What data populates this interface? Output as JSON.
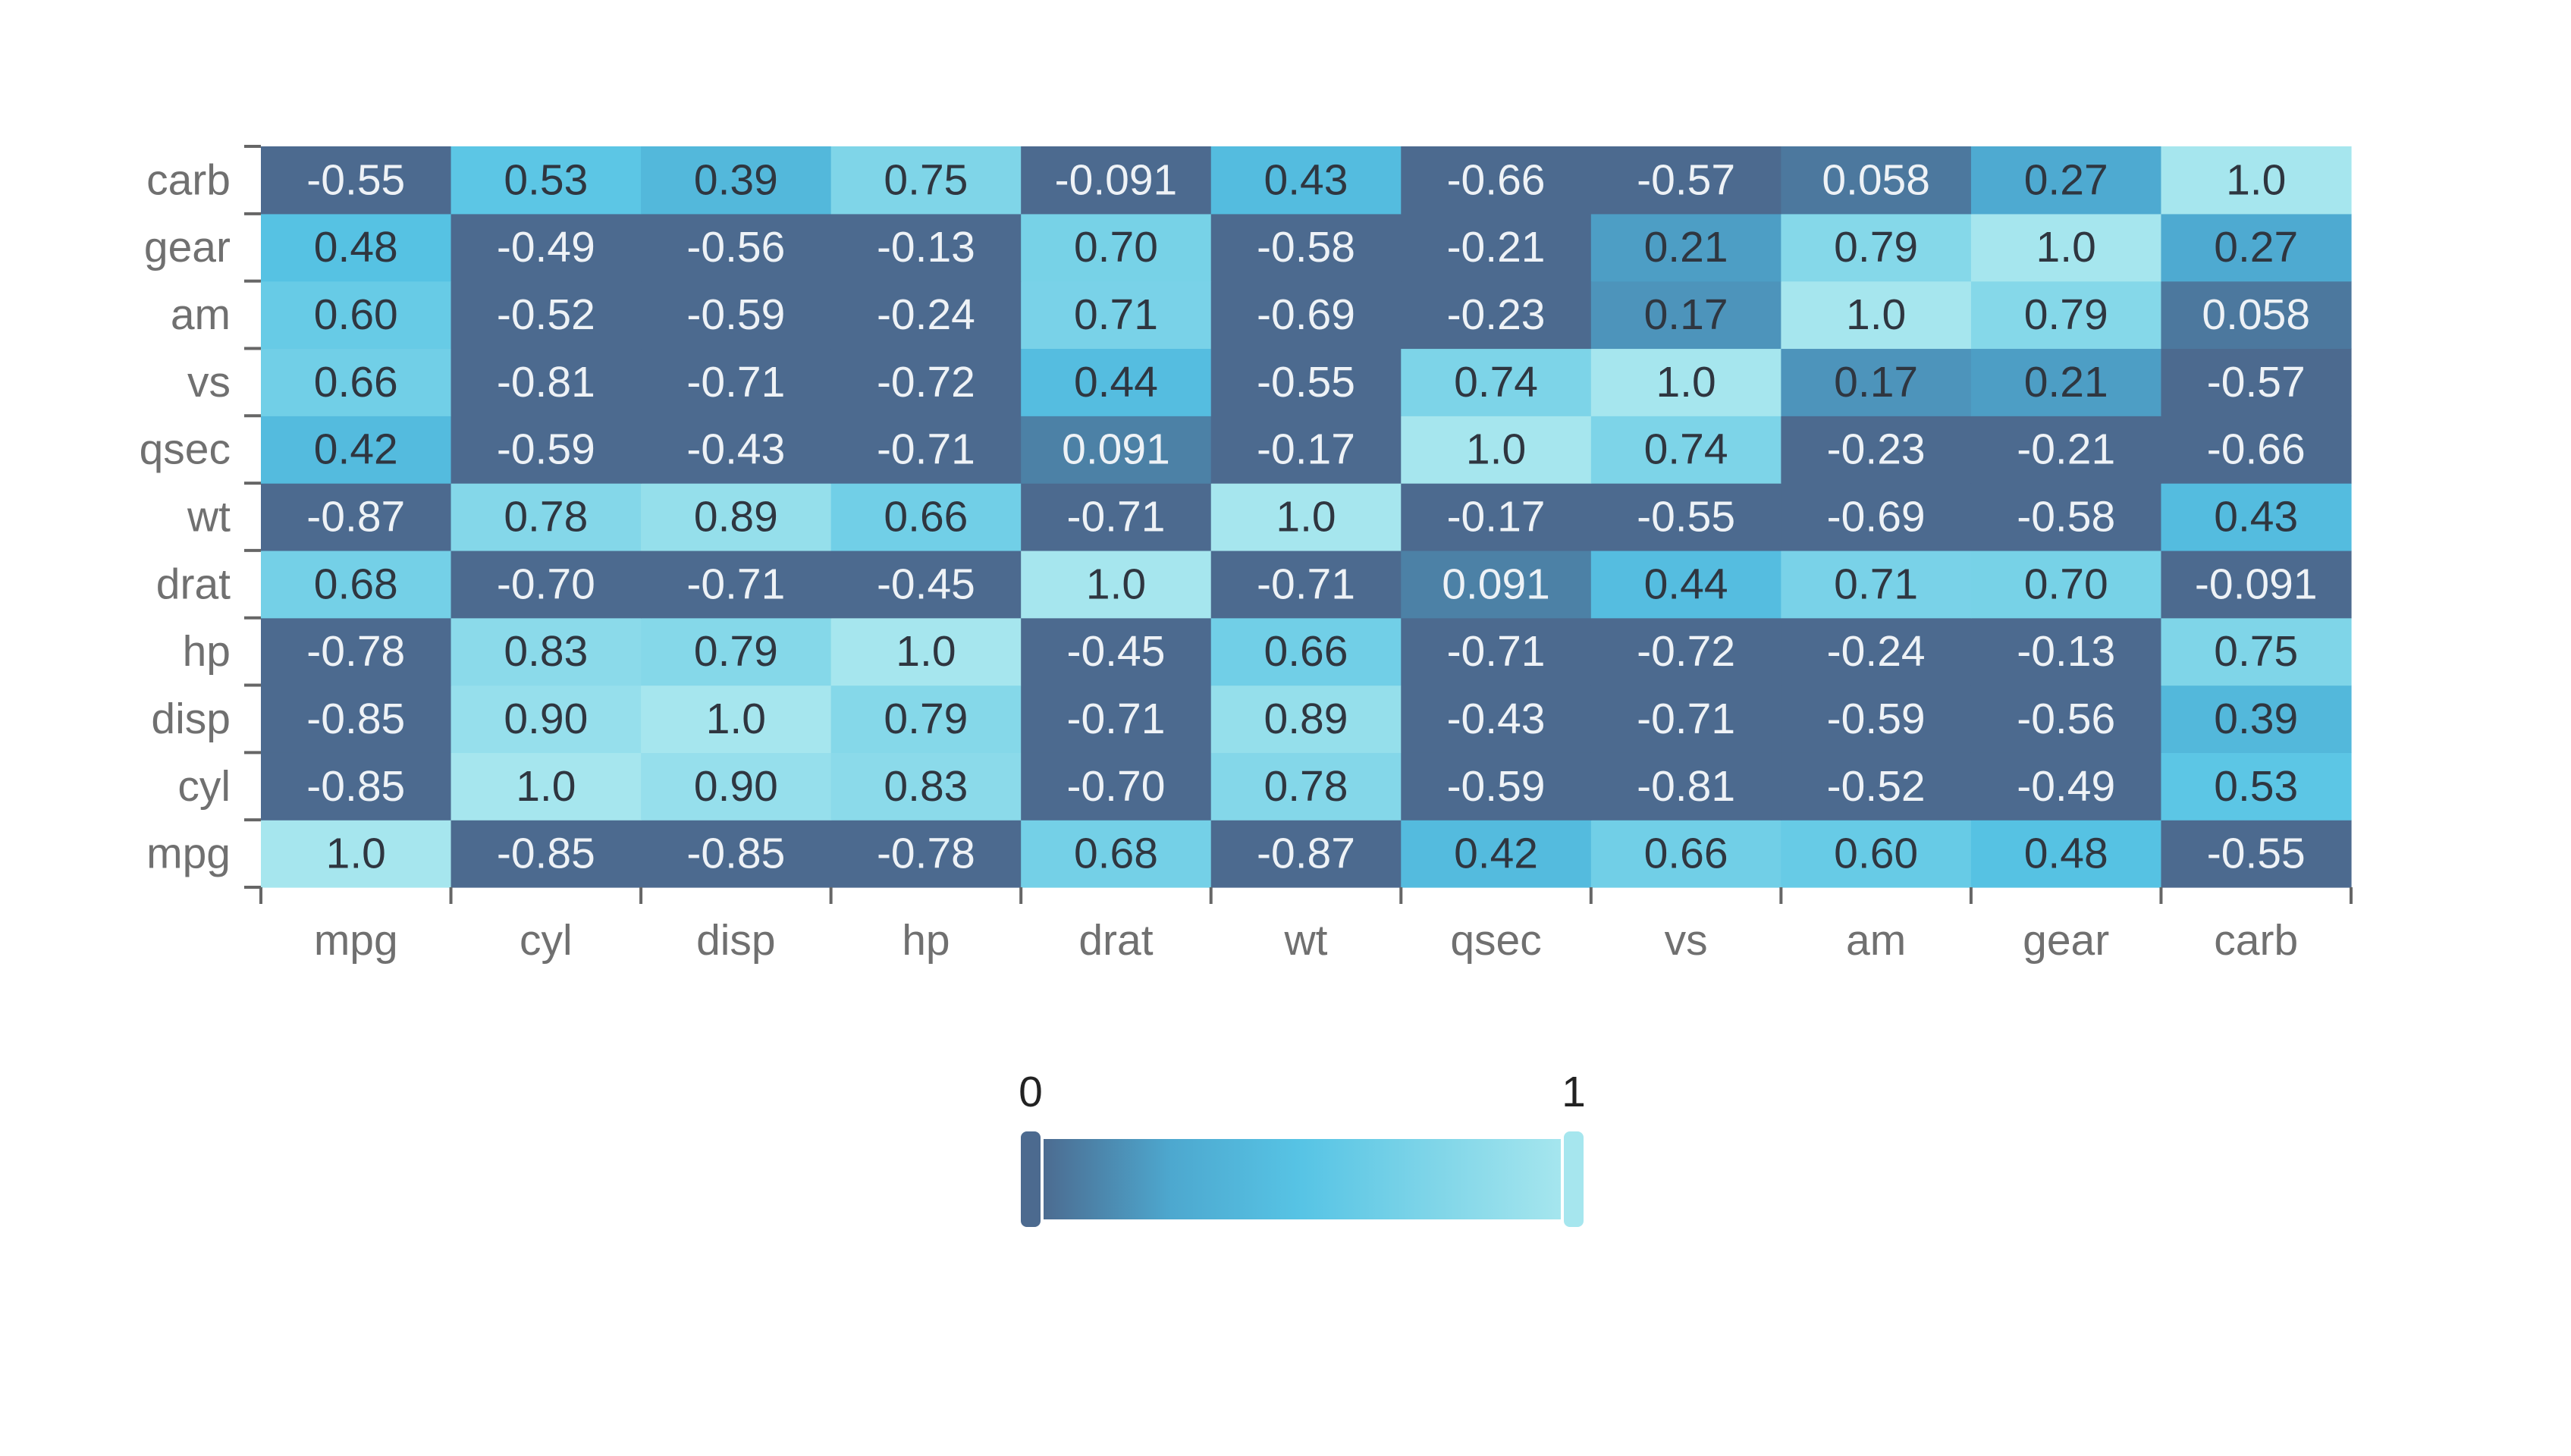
{
  "chart_data": {
    "type": "heatmap",
    "title": "",
    "x_categories": [
      "mpg",
      "cyl",
      "disp",
      "hp",
      "drat",
      "wt",
      "qsec",
      "vs",
      "am",
      "gear",
      "carb"
    ],
    "y_categories": [
      "mpg",
      "cyl",
      "disp",
      "hp",
      "drat",
      "wt",
      "qsec",
      "vs",
      "am",
      "gear",
      "carb"
    ],
    "cells": [
      [
        "1.0",
        "-0.85",
        "-0.85",
        "-0.78",
        "0.68",
        "-0.87",
        "0.42",
        "0.66",
        "0.60",
        "0.48",
        "-0.55"
      ],
      [
        "-0.85",
        "1.0",
        "0.90",
        "0.83",
        "-0.70",
        "0.78",
        "-0.59",
        "-0.81",
        "-0.52",
        "-0.49",
        "0.53"
      ],
      [
        "-0.85",
        "0.90",
        "1.0",
        "0.79",
        "-0.71",
        "0.89",
        "-0.43",
        "-0.71",
        "-0.59",
        "-0.56",
        "0.39"
      ],
      [
        "-0.78",
        "0.83",
        "0.79",
        "1.0",
        "-0.45",
        "0.66",
        "-0.71",
        "-0.72",
        "-0.24",
        "-0.13",
        "0.75"
      ],
      [
        "0.68",
        "-0.70",
        "-0.71",
        "-0.45",
        "1.0",
        "-0.71",
        "0.091",
        "0.44",
        "0.71",
        "0.70",
        "-0.091"
      ],
      [
        "-0.87",
        "0.78",
        "0.89",
        "0.66",
        "-0.71",
        "1.0",
        "-0.17",
        "-0.55",
        "-0.69",
        "-0.58",
        "0.43"
      ],
      [
        "0.42",
        "-0.59",
        "-0.43",
        "-0.71",
        "0.091",
        "-0.17",
        "1.0",
        "0.74",
        "-0.23",
        "-0.21",
        "-0.66"
      ],
      [
        "0.66",
        "-0.81",
        "-0.71",
        "-0.72",
        "0.44",
        "-0.55",
        "0.74",
        "1.0",
        "0.17",
        "0.21",
        "-0.57"
      ],
      [
        "0.60",
        "-0.52",
        "-0.59",
        "-0.24",
        "0.71",
        "-0.69",
        "-0.23",
        "0.17",
        "1.0",
        "0.79",
        "0.058"
      ],
      [
        "0.48",
        "-0.49",
        "-0.56",
        "-0.13",
        "0.70",
        "-0.58",
        "-0.21",
        "0.21",
        "0.79",
        "1.0",
        "0.27"
      ],
      [
        "-0.55",
        "0.53",
        "0.39",
        "0.75",
        "-0.091",
        "0.43",
        "-0.66",
        "-0.57",
        "0.058",
        "0.27",
        "1.0"
      ]
    ],
    "color_range": [
      0,
      1
    ],
    "color_stops": [
      "#4c6a8f",
      "#4da8cf",
      "#57c4e5",
      "#7fd5e8",
      "#a6e6ee"
    ],
    "legend": {
      "min_label": "0",
      "max_label": "1",
      "placement": "bottom-center"
    },
    "grid": false
  }
}
